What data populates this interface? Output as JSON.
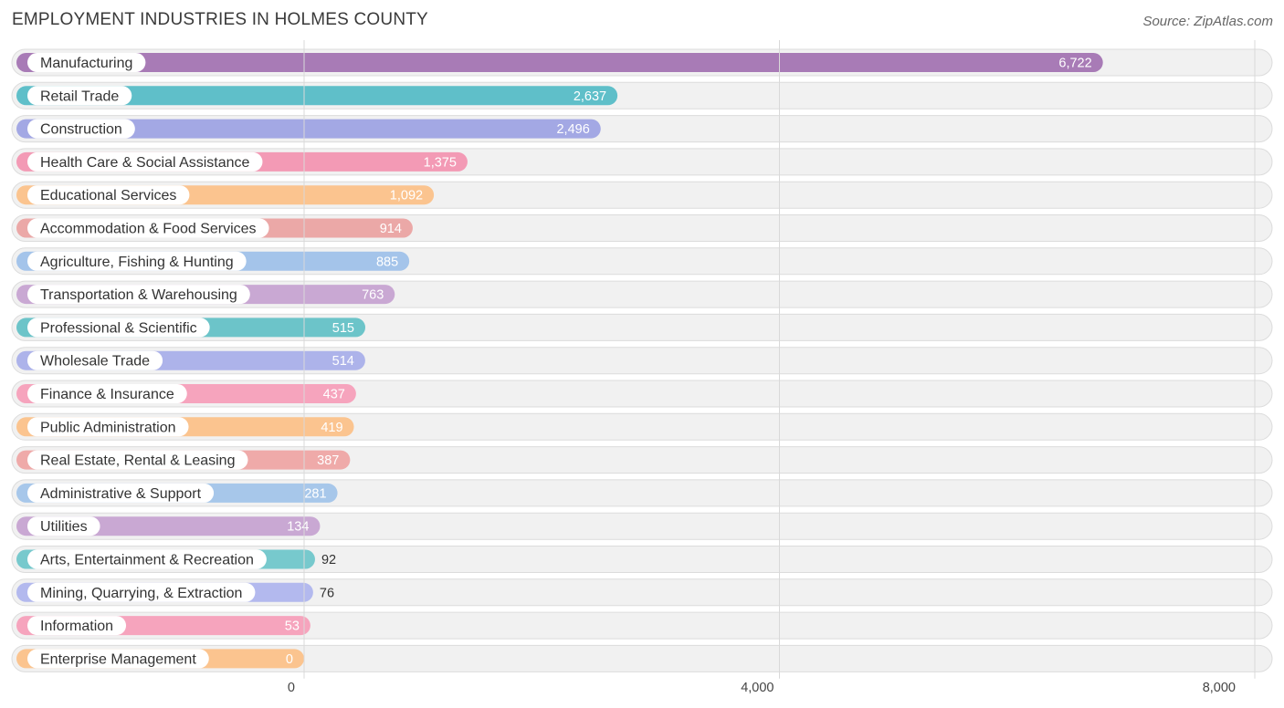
{
  "header": {
    "title": "EMPLOYMENT INDUSTRIES IN HOLMES COUNTY",
    "source": "Source: ZipAtlas.com"
  },
  "chart_data": {
    "type": "bar",
    "orientation": "horizontal",
    "title": "EMPLOYMENT INDUSTRIES IN HOLMES COUNTY",
    "xlabel": "",
    "ylabel": "",
    "xlim": [
      0,
      8000
    ],
    "ticks": [
      {
        "value": 0,
        "label": "0"
      },
      {
        "value": 4000,
        "label": "4,000"
      },
      {
        "value": 8000,
        "label": "8,000"
      }
    ],
    "categories": [
      "Manufacturing",
      "Retail Trade",
      "Construction",
      "Health Care & Social Assistance",
      "Educational Services",
      "Accommodation & Food Services",
      "Agriculture, Fishing & Hunting",
      "Transportation & Warehousing",
      "Professional & Scientific",
      "Wholesale Trade",
      "Finance & Insurance",
      "Public Administration",
      "Real Estate, Rental & Leasing",
      "Administrative & Support",
      "Utilities",
      "Arts, Entertainment & Recreation",
      "Mining, Quarrying, & Extraction",
      "Information",
      "Enterprise Management"
    ],
    "values": [
      6722,
      2637,
      2496,
      1375,
      1092,
      914,
      885,
      763,
      515,
      514,
      437,
      419,
      387,
      281,
      134,
      92,
      76,
      53,
      0
    ],
    "value_labels": [
      "6,722",
      "2,637",
      "2,496",
      "1,375",
      "1,092",
      "914",
      "885",
      "763",
      "515",
      "514",
      "437",
      "419",
      "387",
      "281",
      "134",
      "92",
      "76",
      "53",
      "0"
    ],
    "colors": [
      "#a87bb6",
      "#5fbfc9",
      "#a3a8e4",
      "#f39ab5",
      "#fbc48f",
      "#eba8a7",
      "#a4c4ea",
      "#c9a8d3",
      "#6cc4c9",
      "#adb3ea",
      "#f6a4bd",
      "#fbc48f",
      "#efaaa9",
      "#a7c7ea",
      "#c9a8d3",
      "#77c9cd",
      "#b3b9ee",
      "#f6a4bd",
      "#fbc48f"
    ],
    "grid": true
  }
}
